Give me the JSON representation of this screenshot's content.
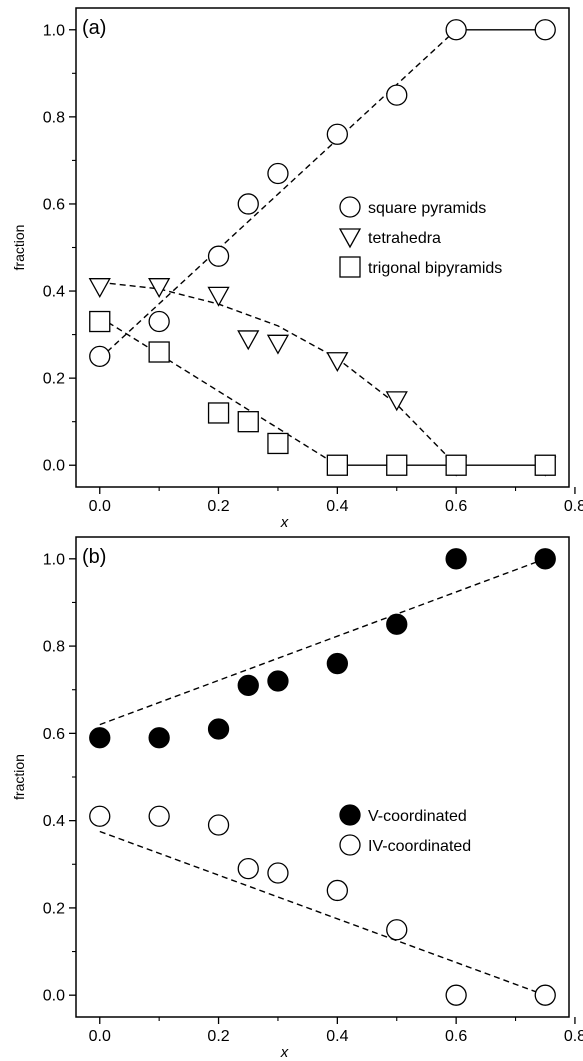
{
  "chart_data": [
    {
      "type": "scatter",
      "panel_label": "(a)",
      "xlabel": "x",
      "ylabel": "fraction",
      "xlim": [
        -0.04,
        0.79
      ],
      "ylim": [
        -0.05,
        1.05
      ],
      "xticks": [
        "0.0",
        "0.2",
        "0.4",
        "0.6",
        "0.8"
      ],
      "yticks": [
        "0.0",
        "0.2",
        "0.4",
        "0.6",
        "0.8",
        "1.0"
      ],
      "grid": false,
      "legend_position": "right",
      "series": [
        {
          "name": "square pyramids",
          "marker": "circle-open",
          "x": [
            0.0,
            0.1,
            0.2,
            0.25,
            0.3,
            0.4,
            0.5,
            0.6,
            0.75
          ],
          "y": [
            0.25,
            0.33,
            0.48,
            0.6,
            0.67,
            0.76,
            0.85,
            1.0,
            1.0
          ]
        },
        {
          "name": "tetrahedra",
          "marker": "triangle-down-open",
          "x": [
            0.0,
            0.1,
            0.2,
            0.25,
            0.3,
            0.4,
            0.5,
            0.6,
            0.75
          ],
          "y": [
            0.41,
            0.41,
            0.39,
            0.29,
            0.28,
            0.24,
            0.15,
            0.0,
            0.0
          ]
        },
        {
          "name": "trigonal bipyramids",
          "marker": "square-open",
          "x": [
            0.0,
            0.1,
            0.2,
            0.25,
            0.3,
            0.4,
            0.5,
            0.6,
            0.75
          ],
          "y": [
            0.33,
            0.26,
            0.12,
            0.1,
            0.05,
            0.0,
            0.0,
            0.0,
            0.0
          ]
        }
      ],
      "lines": [
        {
          "style": "dashed",
          "x": [
            0.0,
            0.6
          ],
          "y": [
            0.245,
            1.0
          ]
        },
        {
          "style": "solid",
          "x": [
            0.6,
            0.75
          ],
          "y": [
            1.0,
            1.0
          ]
        },
        {
          "style": "dashed",
          "x": [
            0.0,
            0.1,
            0.2,
            0.3,
            0.4,
            0.5,
            0.6
          ],
          "y": [
            0.42,
            0.405,
            0.37,
            0.32,
            0.245,
            0.14,
            0.0
          ]
        },
        {
          "style": "dashed",
          "x": [
            0.0,
            0.4
          ],
          "y": [
            0.34,
            0.0
          ]
        },
        {
          "style": "solid",
          "x": [
            0.4,
            0.75
          ],
          "y": [
            0.0,
            0.0
          ]
        }
      ]
    },
    {
      "type": "scatter",
      "panel_label": "(b)",
      "xlabel": "x",
      "ylabel": "fraction",
      "xlim": [
        -0.04,
        0.79
      ],
      "ylim": [
        -0.05,
        1.05
      ],
      "xticks": [
        "0.0",
        "0.2",
        "0.4",
        "0.6",
        "0.8"
      ],
      "yticks": [
        "0.0",
        "0.2",
        "0.4",
        "0.6",
        "0.8",
        "1.0"
      ],
      "grid": false,
      "legend_position": "right",
      "series": [
        {
          "name": "V-coordinated",
          "marker": "circle-filled",
          "x": [
            0.0,
            0.1,
            0.2,
            0.25,
            0.3,
            0.4,
            0.5,
            0.6,
            0.75
          ],
          "y": [
            0.59,
            0.59,
            0.61,
            0.71,
            0.72,
            0.76,
            0.85,
            1.0,
            1.0
          ]
        },
        {
          "name": "IV-coordinated",
          "marker": "circle-open",
          "x": [
            0.0,
            0.1,
            0.2,
            0.25,
            0.3,
            0.4,
            0.5,
            0.6,
            0.75
          ],
          "y": [
            0.41,
            0.41,
            0.39,
            0.29,
            0.28,
            0.24,
            0.15,
            0.0,
            0.0
          ]
        }
      ],
      "lines": [
        {
          "style": "dashed",
          "x": [
            0.0,
            0.75
          ],
          "y": [
            0.62,
            1.0
          ]
        },
        {
          "style": "dashed",
          "x": [
            0.0,
            0.75
          ],
          "y": [
            0.375,
            0.0
          ]
        }
      ]
    }
  ]
}
